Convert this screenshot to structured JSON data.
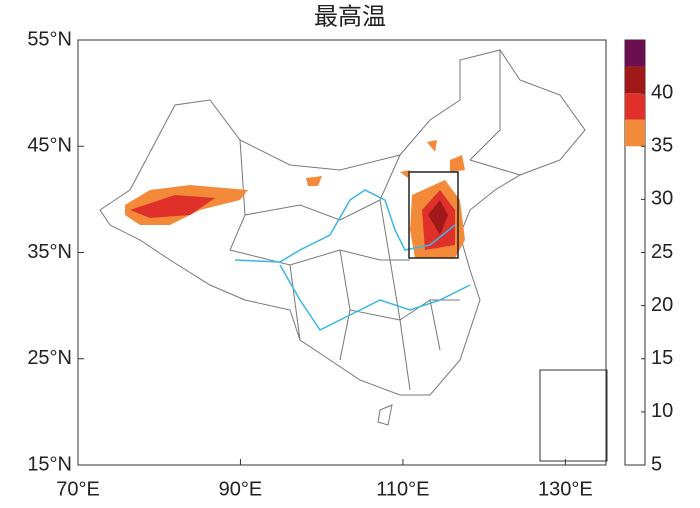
{
  "title": "最高温",
  "map": {
    "xlim": [
      70,
      135
    ],
    "ylim": [
      15,
      55
    ],
    "lon_ticks": [
      {
        "value": 70,
        "label": "70°E"
      },
      {
        "value": 90,
        "label": "90°E"
      },
      {
        "value": 110,
        "label": "110°E"
      },
      {
        "value": 130,
        "label": "130°E"
      }
    ],
    "lat_ticks": [
      {
        "value": 15,
        "label": "15°N"
      },
      {
        "value": 25,
        "label": "25°N"
      },
      {
        "value": 35,
        "label": "35°N"
      },
      {
        "value": 45,
        "label": "45°N"
      },
      {
        "value": 55,
        "label": "55°N"
      }
    ]
  },
  "colorbar": {
    "range": [
      5,
      45
    ],
    "ticks": [
      5,
      10,
      15,
      20,
      25,
      30,
      35,
      40
    ],
    "levels": [
      35,
      37.5,
      40,
      42.5,
      45
    ],
    "colors": [
      "#f28a3a",
      "#e0302a",
      "#a01818",
      "#6a1050"
    ]
  }
}
